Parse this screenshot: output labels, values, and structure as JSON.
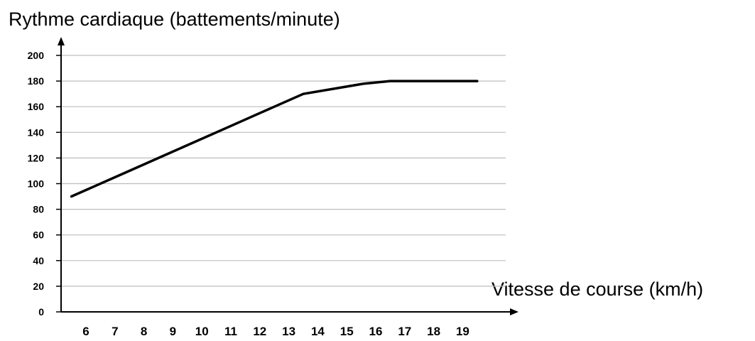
{
  "chart_data": {
    "type": "line",
    "ylabel": "Rythme cardiaque (battements/minute)",
    "xlabel": "Vitesse de course (km/h)",
    "x_ticks": [
      "6",
      "7",
      "8",
      "9",
      "10",
      "11",
      "12",
      "13",
      "14",
      "15",
      "16",
      "17",
      "18",
      "19"
    ],
    "y_ticks": [
      "0",
      "20",
      "40",
      "60",
      "80",
      "100",
      "120",
      "140",
      "160",
      "180",
      "200"
    ],
    "ylim": [
      0,
      200
    ],
    "xlim": [
      5.2,
      19.8
    ],
    "grid": true,
    "series": [
      {
        "color": "#000000",
        "points": [
          [
            5.5,
            90
          ],
          [
            7.0,
            105
          ],
          [
            9.0,
            125
          ],
          [
            11.0,
            145
          ],
          [
            12.0,
            155
          ],
          [
            13.5,
            170
          ],
          [
            15.6,
            178
          ],
          [
            16.5,
            180
          ],
          [
            19.5,
            180
          ]
        ]
      }
    ]
  }
}
